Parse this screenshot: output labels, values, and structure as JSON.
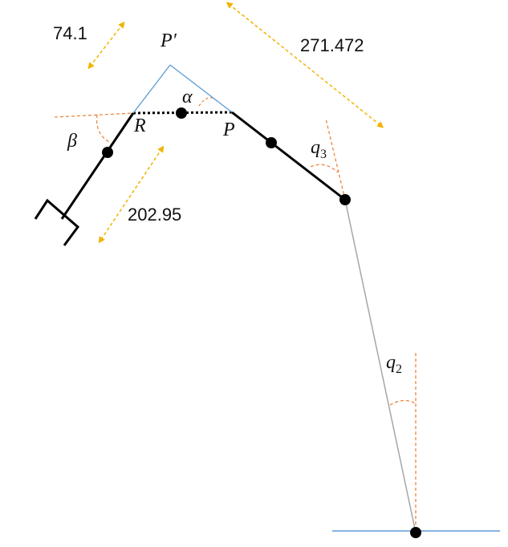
{
  "dimensions": {
    "upper_left": "74.1",
    "top_right": "271.472",
    "middle_left": "202.95"
  },
  "symbols": {
    "p_prime": "P′",
    "alpha": "α",
    "beta": "β",
    "r": "R",
    "p": "P",
    "q3": {
      "base": "q",
      "sub": "3"
    },
    "q2": {
      "base": "q",
      "sub": "2"
    }
  },
  "colors": {
    "link": "#000000",
    "construction_blue": "#5b9bd5",
    "reference_orange": "#ed7d31",
    "dimension_arrow": "#f0b400",
    "link_gray": "#a6a6a6"
  }
}
